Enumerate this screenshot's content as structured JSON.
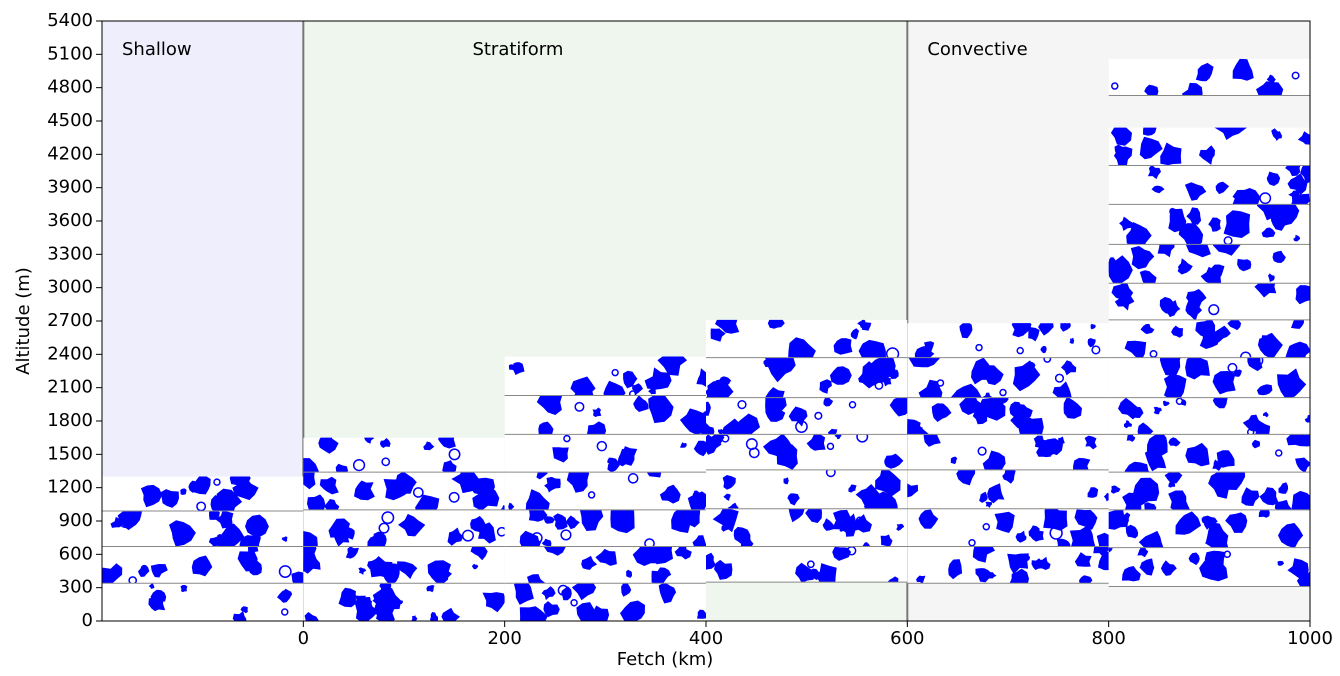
{
  "chart_data": {
    "type": "collage",
    "x_label": "Fetch (km)",
    "y_label": "Altitude (m)",
    "xlim": [
      -200,
      1000
    ],
    "ylim": [
      0,
      5400
    ],
    "xticks": [
      0,
      200,
      400,
      600,
      800,
      1000
    ],
    "yticks": [
      0,
      300,
      600,
      900,
      1200,
      1500,
      1800,
      2100,
      2400,
      2700,
      3000,
      3300,
      3600,
      3900,
      4200,
      4500,
      4800,
      5100,
      5400
    ],
    "regions": [
      {
        "name": "Shallow",
        "range": [
          -200,
          0
        ],
        "color": "#eeeefc"
      },
      {
        "name": "Stratiform",
        "range": [
          0,
          600
        ],
        "color": "#eef6ee"
      },
      {
        "name": "Convective",
        "range": [
          600,
          1000
        ],
        "color": "#f5f5f5"
      }
    ],
    "panels": [
      {
        "x": [
          -200,
          0
        ],
        "altitudes": [
          0,
          340,
          670,
          990,
          1300
        ]
      },
      {
        "x": [
          0,
          200
        ],
        "altitudes": [
          0,
          340,
          670,
          1000,
          1340,
          1650
        ]
      },
      {
        "x": [
          200,
          400
        ],
        "altitudes": [
          0,
          340,
          670,
          1000,
          1340,
          1680,
          2030,
          2380
        ]
      },
      {
        "x": [
          400,
          600
        ],
        "altitudes": [
          350,
          670,
          1010,
          1360,
          1680,
          2010,
          2370,
          2710
        ]
      },
      {
        "x": [
          600,
          800
        ],
        "altitudes": [
          340,
          670,
          1010,
          1360,
          1680,
          2010,
          2370,
          2680
        ]
      },
      {
        "x": [
          800,
          1000
        ],
        "altitudes": [
          310,
          660,
          1000,
          1340,
          1680,
          2010,
          2370,
          2710,
          3040,
          3390,
          3750,
          4100,
          4440
        ]
      },
      {
        "x": [
          800,
          1000
        ],
        "altitudes": [
          4730,
          5060
        ]
      }
    ],
    "particle_color": "#0000ff"
  }
}
